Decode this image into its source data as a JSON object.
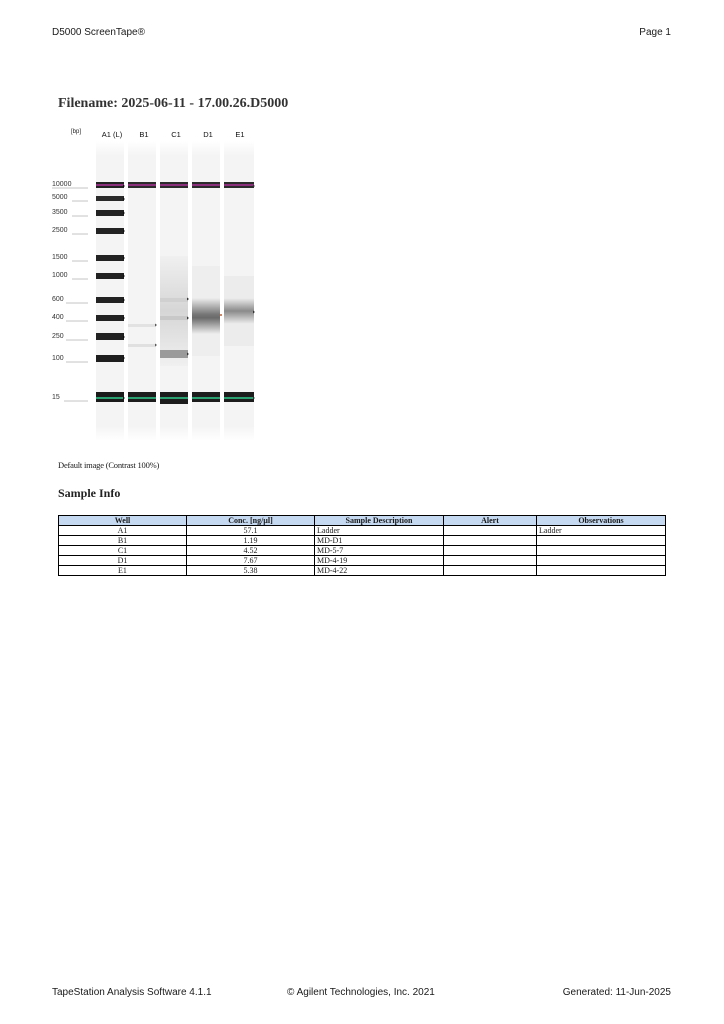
{
  "header": {
    "title": "D5000 ScreenTape®",
    "page": "Page 1"
  },
  "filename": "Filename: 2025-06-11 - 17.00.26.D5000",
  "gel": {
    "unit_label": "[bp]",
    "lanes": [
      "A1 (L)",
      "B1",
      "C1",
      "D1",
      "E1"
    ],
    "size_labels": [
      "10000",
      "5000",
      "3500",
      "2500",
      "1500",
      "1000",
      "600",
      "400",
      "250",
      "100",
      "15"
    ],
    "caption": "Default image (Contrast 100%)"
  },
  "sample_info": {
    "title": "Sample Info",
    "columns": [
      "Well",
      "Conc. [ng/µl]",
      "Sample Description",
      "Alert",
      "Observations"
    ],
    "rows": [
      [
        "A1",
        "57.1",
        "Ladder",
        "",
        "Ladder"
      ],
      [
        "B1",
        "1.19",
        "MD-D1",
        "",
        ""
      ],
      [
        "C1",
        "4.52",
        "MD-5-7",
        "",
        ""
      ],
      [
        "D1",
        "7.67",
        "MD-4-19",
        "",
        ""
      ],
      [
        "E1",
        "5.38",
        "MD-4-22",
        "",
        ""
      ]
    ]
  },
  "footer": {
    "software": "TapeStation Analysis Software 4.1.1",
    "copyright": "© Agilent Technologies, Inc. 2021",
    "generated": "Generated: 11-Jun-2025"
  }
}
